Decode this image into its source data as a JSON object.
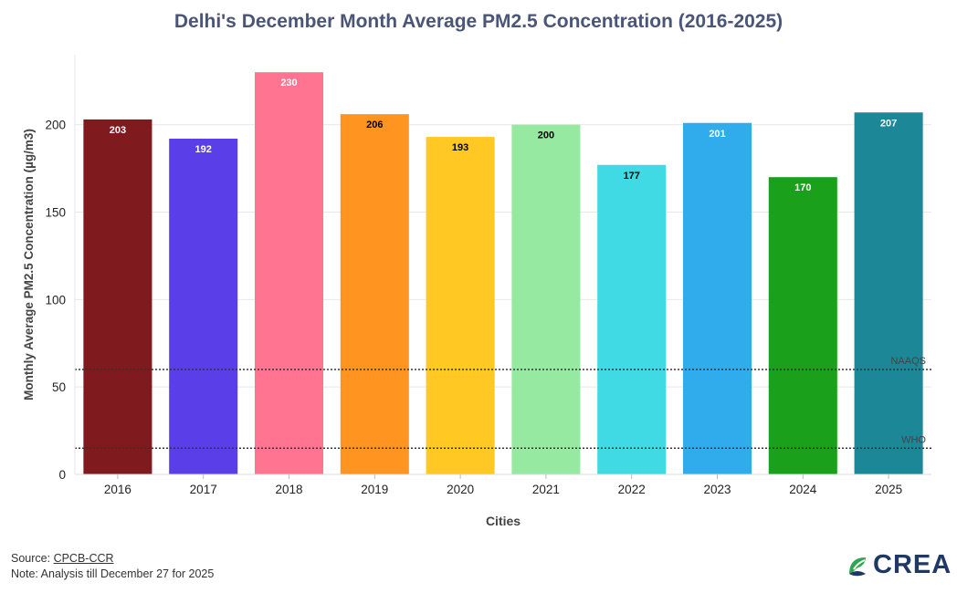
{
  "chart_data": {
    "type": "bar",
    "title": "Delhi's December Month Average PM2.5 Concentration (2016-2025)",
    "xlabel": "Cities",
    "ylabel": "Monthly Average PM2.5 Concentration (µg/m3)",
    "categories": [
      "2016",
      "2017",
      "2018",
      "2019",
      "2020",
      "2021",
      "2022",
      "2023",
      "2024",
      "2025"
    ],
    "values": [
      203,
      192,
      230,
      206,
      193,
      200,
      177,
      201,
      170,
      207
    ],
    "data_labels": [
      "203",
      "192",
      "230",
      "206",
      "193",
      "200",
      "177",
      "201",
      "170",
      "207"
    ],
    "bar_colors": [
      "#7f1a1e",
      "#5a3fe8",
      "#ff7591",
      "#ff9520",
      "#ffc822",
      "#96e9a0",
      "#3fdae3",
      "#30acec",
      "#1aa01a",
      "#1c8897"
    ],
    "label_colors": [
      "#ffffff",
      "#ffffff",
      "#ffffff",
      "#000000",
      "#000000",
      "#000000",
      "#000000",
      "#ffffff",
      "#ffffff",
      "#ffffff"
    ],
    "ylim": [
      0,
      240
    ],
    "yticks": [
      0,
      50,
      100,
      150,
      200
    ],
    "ytick_labels": [
      "0",
      "50",
      "100",
      "150",
      "200"
    ],
    "grid": true,
    "reference_lines": [
      {
        "label": "NAAQS",
        "value": 60
      },
      {
        "label": "WHO",
        "value": 15
      }
    ]
  },
  "footer": {
    "source_prefix": "Source: ",
    "source_link": "CPCB-CCR",
    "note": "Note: Analysis till December 27 for 2025"
  },
  "logo": {
    "text": "CREA",
    "colors": [
      "#2ea84f",
      "#8dc63f",
      "#1f3864"
    ]
  }
}
